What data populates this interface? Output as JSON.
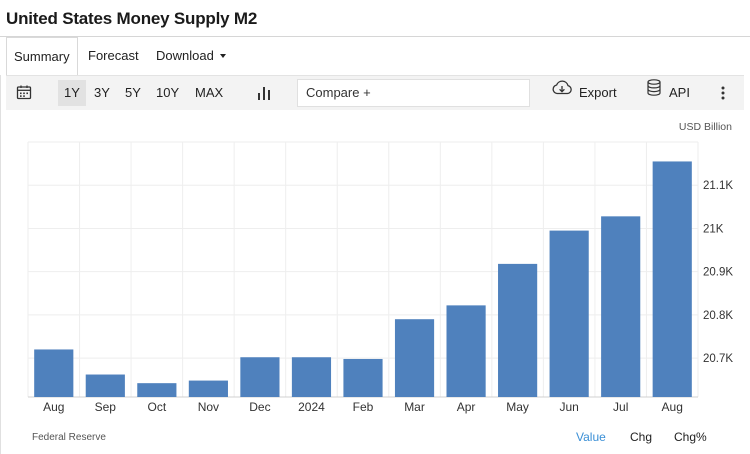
{
  "header": {
    "title": "United States Money Supply M2"
  },
  "tabs": [
    {
      "label": "Summary",
      "active": true
    },
    {
      "label": "Forecast"
    },
    {
      "label": "Download"
    }
  ],
  "toolbar": {
    "calendar_icon": "calendar-icon",
    "ranges": [
      {
        "label": "1Y",
        "active": true
      },
      {
        "label": "3Y"
      },
      {
        "label": "5Y"
      },
      {
        "label": "10Y"
      },
      {
        "label": "MAX"
      }
    ],
    "chart_type_icon": "bar-chart-icon",
    "compare_label": "Compare +",
    "export_label": "Export",
    "export_icon": "cloud-download-icon",
    "api_label": "API",
    "api_icon": "database-icon",
    "more_icon": "more-vertical-icon"
  },
  "chart_data": {
    "type": "bar",
    "unit_label": "USD Billion",
    "categories": [
      "Aug",
      "Sep",
      "Oct",
      "Nov",
      "Dec",
      "2024",
      "Feb",
      "Mar",
      "Apr",
      "May",
      "Jun",
      "Jul",
      "Aug"
    ],
    "values": [
      20720,
      20662,
      20642,
      20648,
      20702,
      20702,
      20698,
      20790,
      20822,
      20918,
      20995,
      21028,
      21155
    ],
    "yticks": [
      "21.1K",
      "21K",
      "20.9K",
      "20.8K",
      "20.7K"
    ],
    "ytick_values": [
      21100,
      21000,
      20900,
      20800,
      20700
    ],
    "ylim": [
      20610,
      21200
    ],
    "grid": true,
    "bar_color": "#4f81bd"
  },
  "footer": {
    "source": "Federal Reserve",
    "view_tabs": [
      {
        "label": "Value",
        "active": true
      },
      {
        "label": "Chg"
      },
      {
        "label": "Chg%"
      }
    ],
    "accent": "#3a8fd6"
  }
}
